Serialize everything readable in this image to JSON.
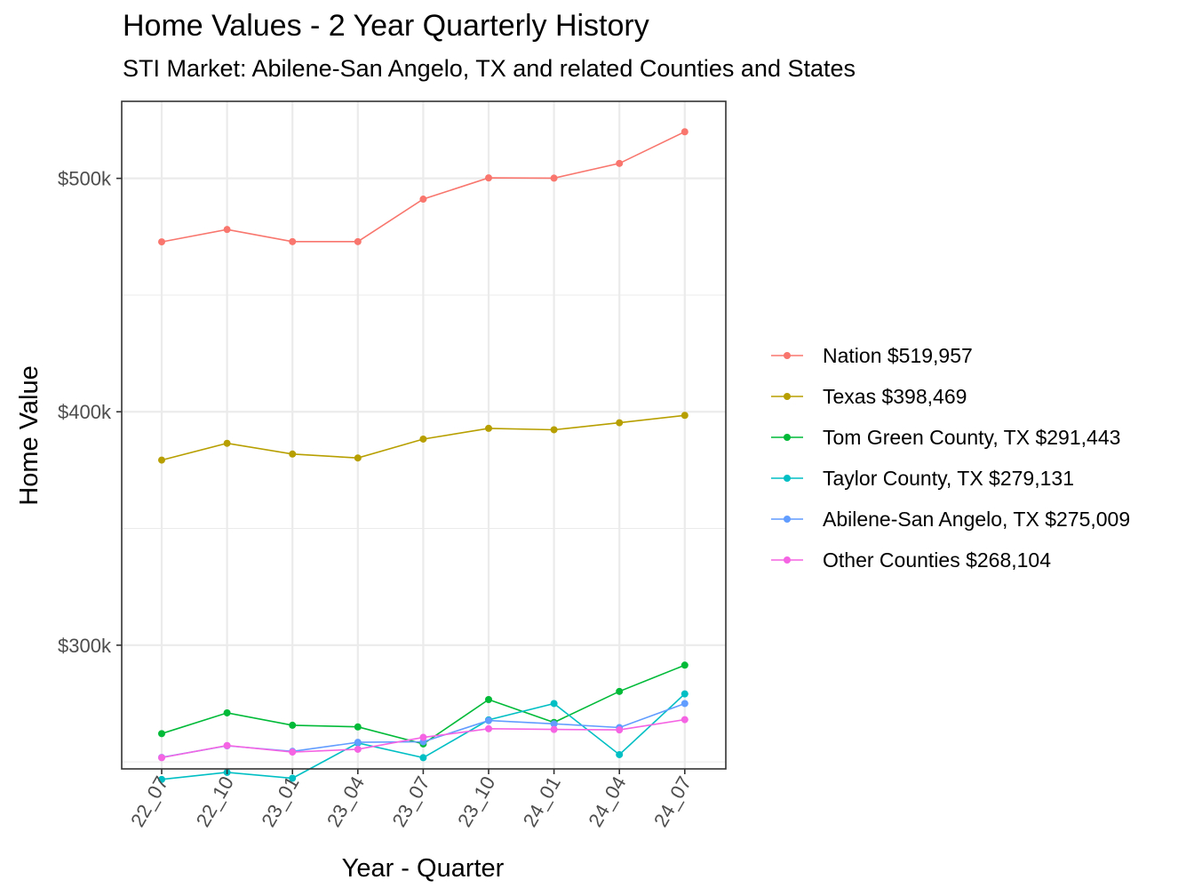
{
  "chart_data": {
    "type": "line",
    "title": "Home Values - 2 Year Quarterly History",
    "subtitle": "STI Market: Abilene-San Angelo, TX and related Counties and States",
    "xlabel": "Year - Quarter",
    "ylabel": "Home Value",
    "categories": [
      "22_07",
      "22_10",
      "23_01",
      "23_04",
      "23_07",
      "23_10",
      "24_01",
      "24_04",
      "24_07"
    ],
    "ylim": [
      247000,
      533000
    ],
    "yticks": [
      300000,
      400000,
      500000
    ],
    "ytick_labels": [
      "$300k",
      "$400k",
      "$500k"
    ],
    "grid": true,
    "legend_position": "right",
    "series": [
      {
        "name": "Nation $519,957",
        "color": "#F8766D",
        "values": [
          472800,
          478100,
          472900,
          472900,
          491100,
          500200,
          500100,
          506400,
          519957
        ]
      },
      {
        "name": "Texas $398,469",
        "color": "#B79F00",
        "values": [
          379300,
          386500,
          381900,
          380200,
          388300,
          392900,
          392300,
          395300,
          398469
        ]
      },
      {
        "name": "Tom Green County, TX $291,443",
        "color": "#00BA38",
        "values": [
          262100,
          271000,
          265700,
          265000,
          257700,
          276700,
          266900,
          280200,
          291443
        ]
      },
      {
        "name": "Taylor County, TX $279,131",
        "color": "#00BFC4",
        "values": [
          242500,
          245500,
          243000,
          258100,
          251800,
          268000,
          275000,
          253100,
          279131
        ]
      },
      {
        "name": "Abilene-San Angelo, TX $275,009",
        "color": "#619CFF",
        "values": [
          251900,
          256900,
          254500,
          258400,
          258600,
          267700,
          266300,
          264700,
          275009
        ]
      },
      {
        "name": "Other Counties $268,104",
        "color": "#F564E3",
        "values": [
          251800,
          257000,
          254200,
          255400,
          260500,
          264200,
          263900,
          263700,
          268104
        ]
      }
    ]
  }
}
